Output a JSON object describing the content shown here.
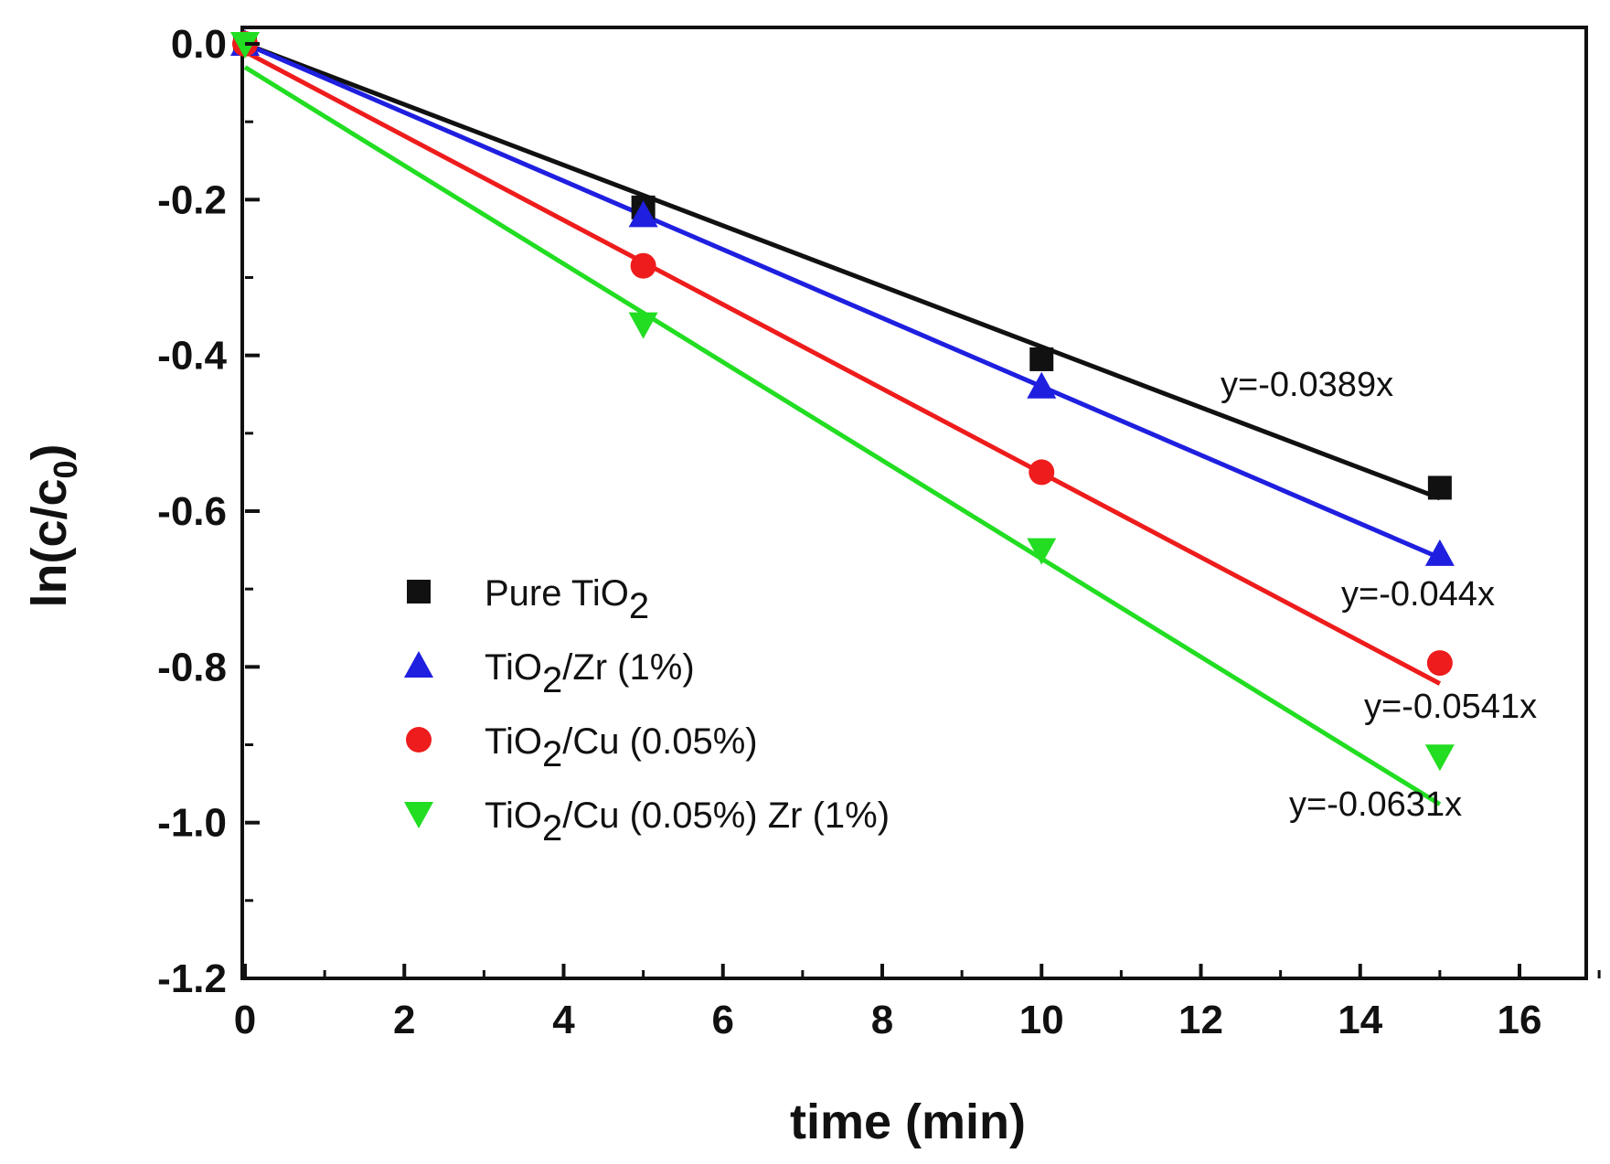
{
  "chart_data": {
    "type": "scatter",
    "xlabel": "time (min)",
    "ylabel": "ln(c/c0)",
    "xlim": [
      0,
      17
    ],
    "ylim": [
      -1.2,
      0.0
    ],
    "xticks": [
      0,
      2,
      4,
      6,
      8,
      10,
      12,
      14,
      16
    ],
    "yticks": [
      0.0,
      -0.2,
      -0.4,
      -0.6,
      -0.8,
      -1.0,
      -1.2
    ],
    "xtick_labels": [
      "0",
      "2",
      "4",
      "6",
      "8",
      "10",
      "12",
      "14",
      "16"
    ],
    "ytick_labels": [
      "0.0",
      "-0.2",
      "-0.4",
      "-0.6",
      "-0.8",
      "-1.0",
      "-1.2"
    ],
    "legend_position": "center-left",
    "series": [
      {
        "name": "Pure TiO2",
        "label_main": "Pure TiO",
        "label_sub": "2",
        "label_rest": "",
        "marker": "square",
        "color": "#111111",
        "x": [
          0,
          5,
          10,
          15
        ],
        "y": [
          0.0,
          -0.21,
          -0.405,
          -0.57
        ],
        "fit_slope": -0.0389,
        "fit_intercept": 0.0,
        "equation": "y=-0.0389x"
      },
      {
        "name": "TiO2/Zr (1%)",
        "label_main": "TiO",
        "label_sub": "2",
        "label_rest": "/Zr (1%)",
        "marker": "triangle-up",
        "color": "#1f1fe0",
        "x": [
          0,
          5,
          10,
          15
        ],
        "y": [
          0.0,
          -0.22,
          -0.44,
          -0.655
        ],
        "fit_slope": -0.044,
        "fit_intercept": 0.0,
        "equation": "y=-0.044x"
      },
      {
        "name": "TiO2/Cu (0.05%)",
        "label_main": "TiO",
        "label_sub": "2",
        "label_rest": "/Cu (0.05%)",
        "marker": "circle",
        "color": "#ee1c1c",
        "x": [
          0,
          5,
          10,
          15
        ],
        "y": [
          0.0,
          -0.285,
          -0.55,
          -0.795
        ],
        "fit_slope": -0.0541,
        "fit_intercept": -0.01,
        "equation": "y=-0.0541x"
      },
      {
        "name": "TiO2/Cu (0.05%) Zr (1%)",
        "label_main": "TiO",
        "label_sub": "2",
        "label_rest": "/Cu (0.05%) Zr (1%)",
        "marker": "triangle-down",
        "color": "#22dd22",
        "x": [
          0,
          5,
          10,
          15
        ],
        "y": [
          0.0,
          -0.36,
          -0.65,
          -0.915
        ],
        "fit_slope": -0.0631,
        "fit_intercept": -0.03,
        "equation": "y=-0.0631x"
      }
    ]
  }
}
